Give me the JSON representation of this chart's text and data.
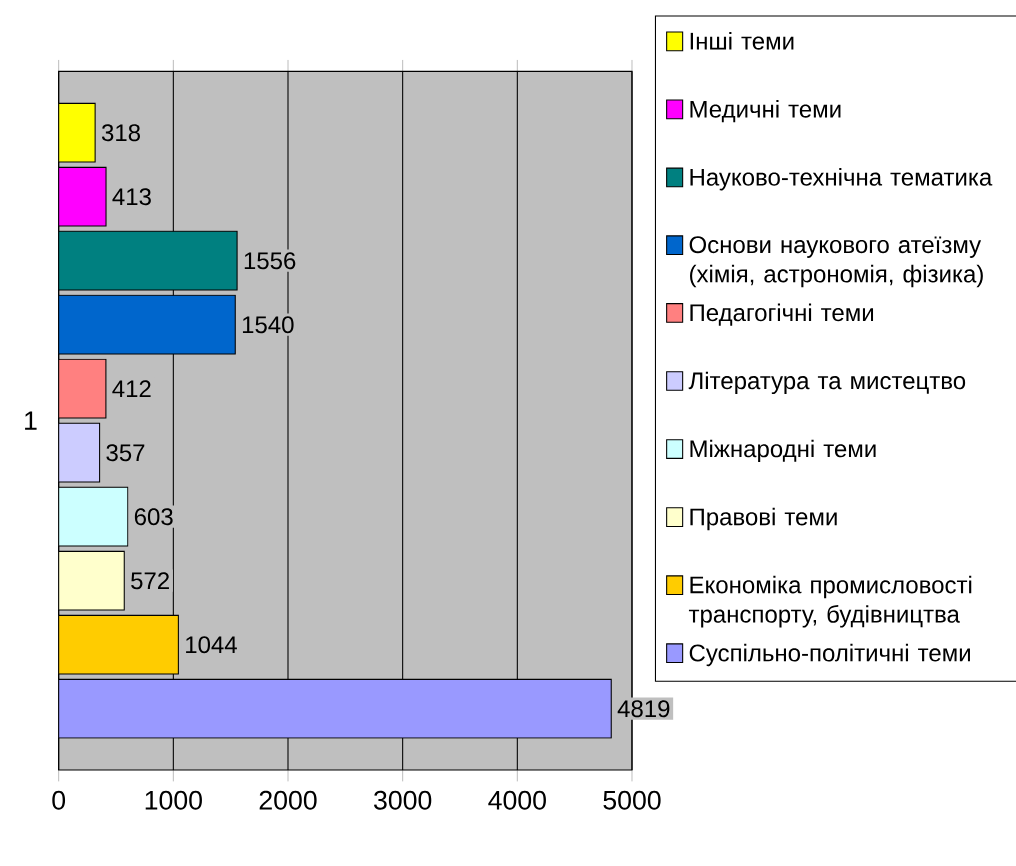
{
  "chart_data": {
    "type": "bar",
    "orientation": "horizontal",
    "categories": [
      "1"
    ],
    "series": [
      {
        "name": "Інші теми",
        "color": "#ffff00",
        "values": [
          318
        ]
      },
      {
        "name": "Медичні теми",
        "color": "#ff00ff",
        "values": [
          413
        ]
      },
      {
        "name": "Науково-технічна тематика",
        "color": "#008080",
        "values": [
          1556
        ]
      },
      {
        "name": "Основи наукового атеїзму (хімія, астрономія, фізика)",
        "color": "#0066cc",
        "values": [
          1540
        ]
      },
      {
        "name": "Педагогічні теми",
        "color": "#ff8080",
        "values": [
          412
        ]
      },
      {
        "name": "Література та мистецтво",
        "color": "#ccccff",
        "values": [
          357
        ]
      },
      {
        "name": "Міжнародні теми",
        "color": "#ccffff",
        "values": [
          603
        ]
      },
      {
        "name": "Правові теми",
        "color": "#ffffcc",
        "values": [
          572
        ]
      },
      {
        "name": "Економіка промисловості транспорту, будівництва",
        "color": "#ffcc00",
        "values": [
          1044
        ]
      },
      {
        "name": "Суспільно-політичні теми",
        "color": "#9999ff",
        "values": [
          4819
        ]
      }
    ],
    "xlim": [
      0,
      5000
    ],
    "xticks": [
      0,
      1000,
      2000,
      3000,
      4000,
      5000
    ],
    "grid": "x",
    "legend": "right",
    "data_labels": true
  }
}
